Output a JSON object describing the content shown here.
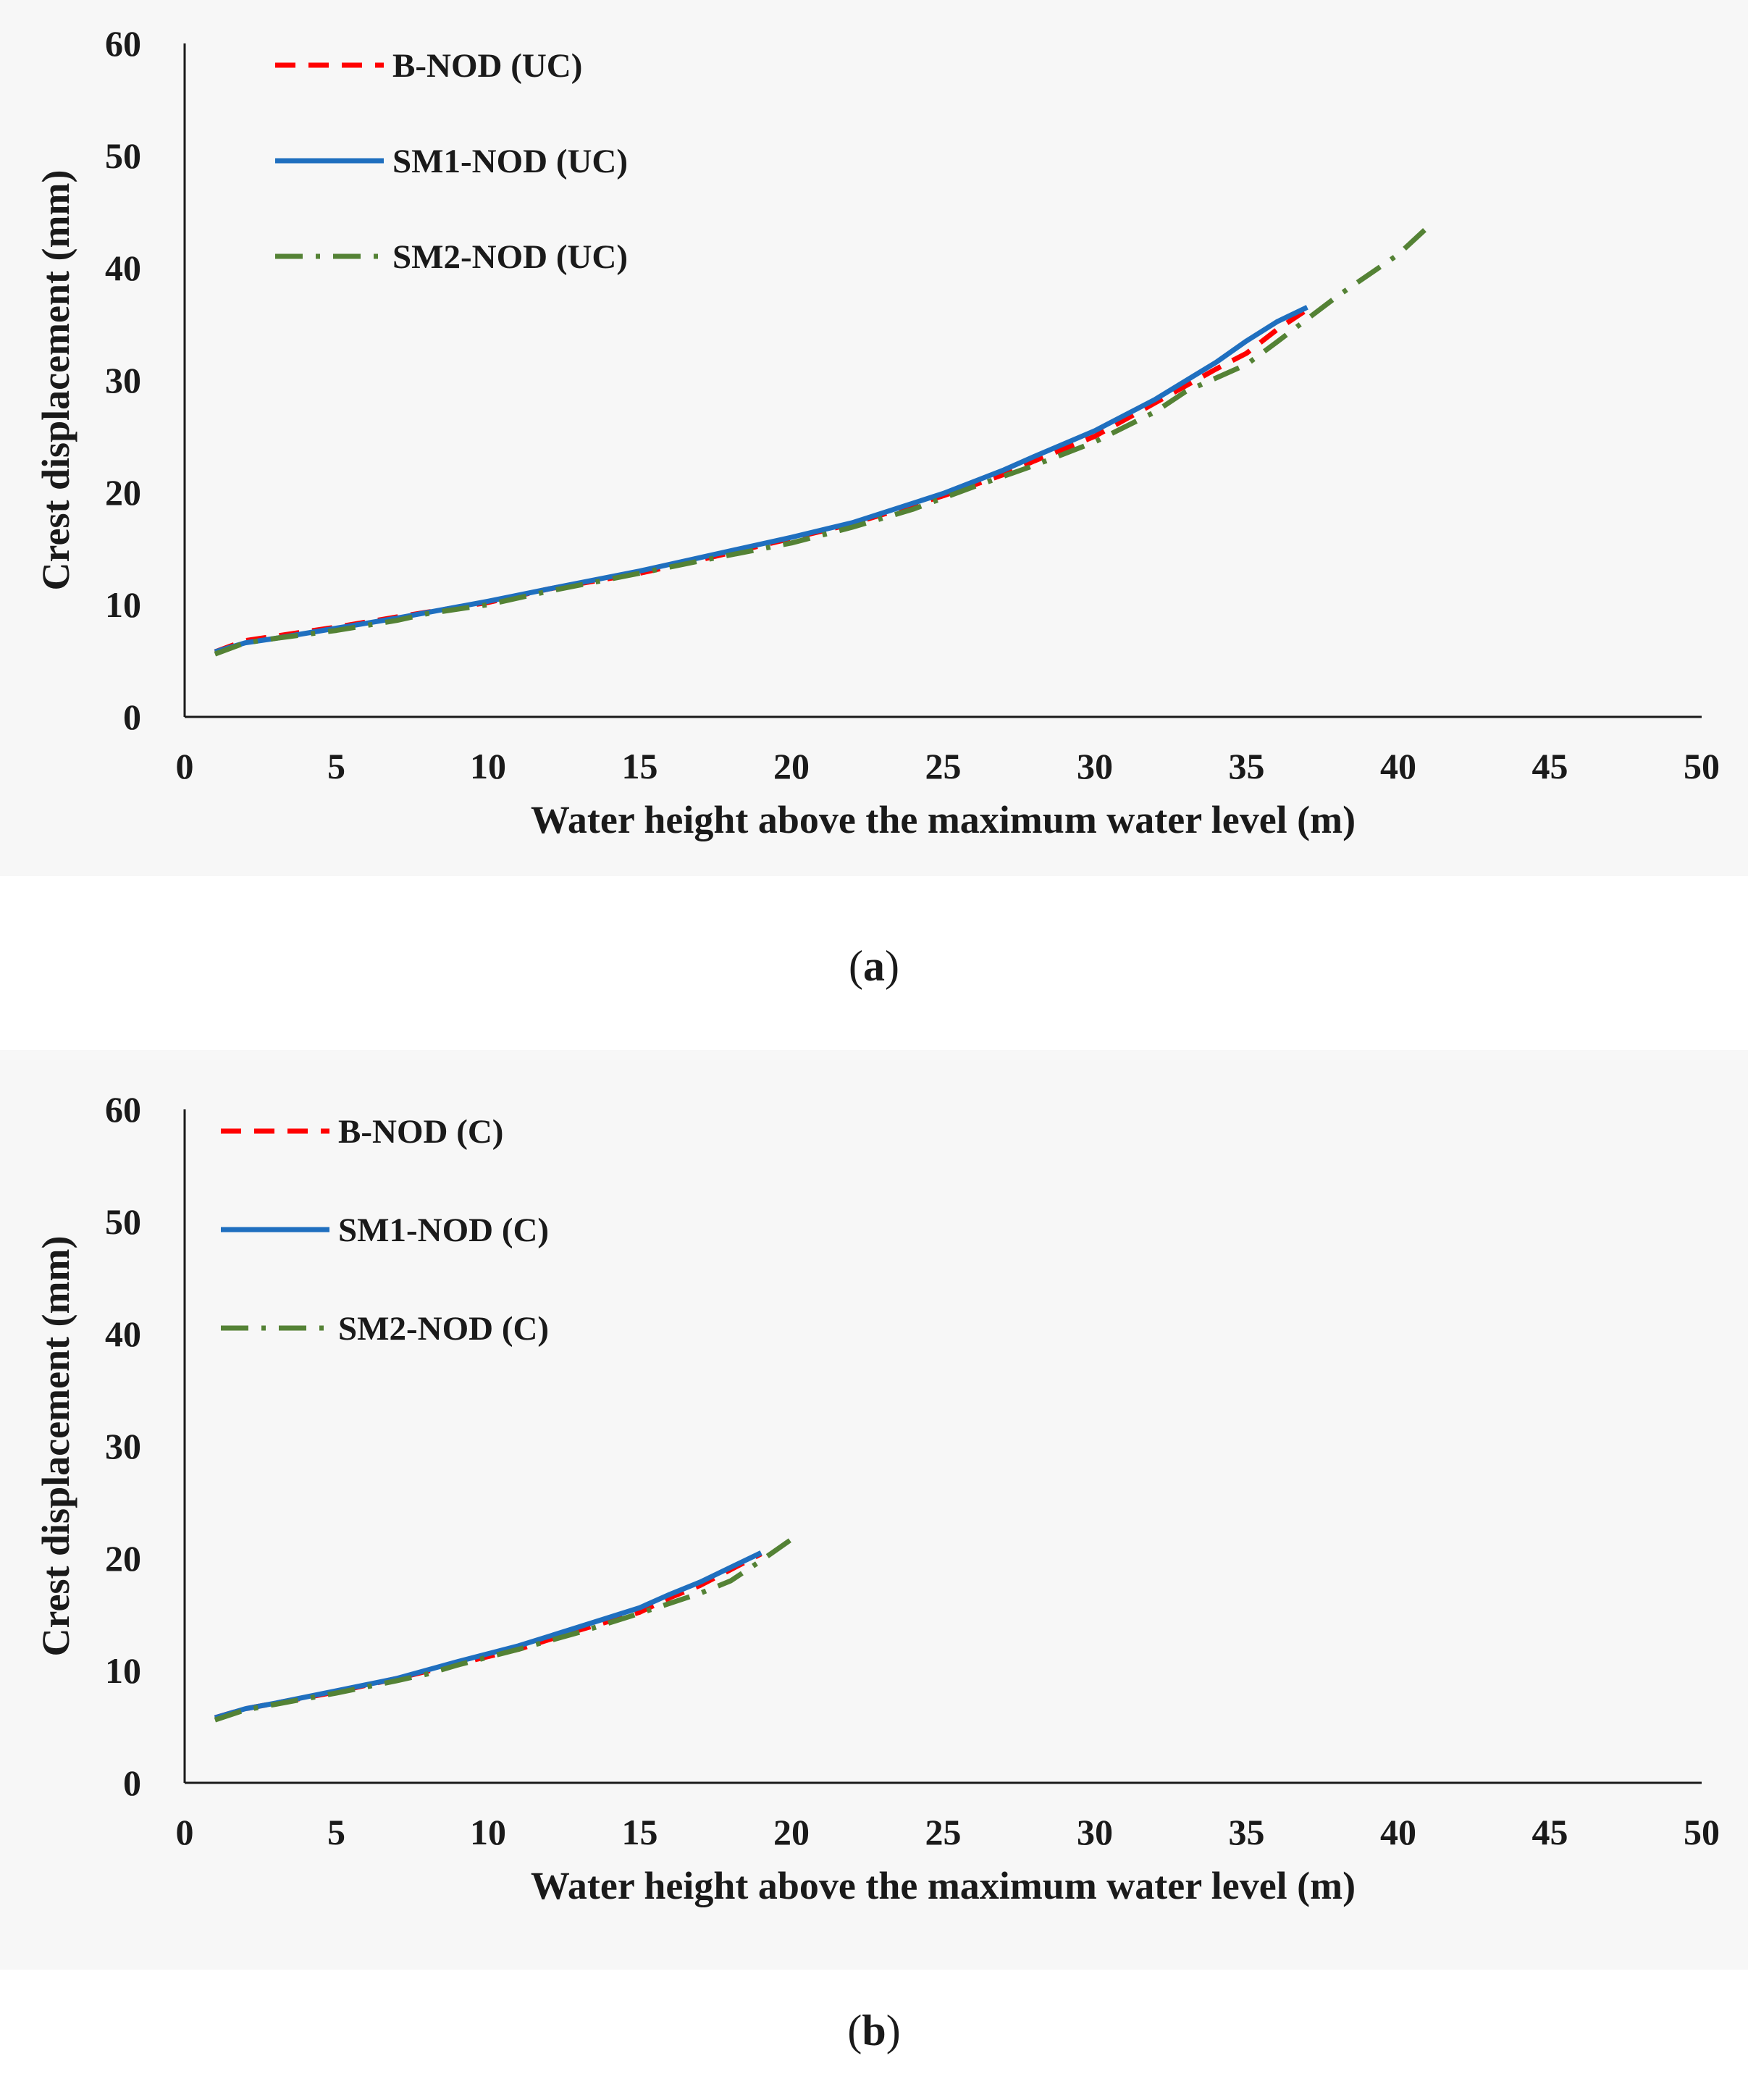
{
  "chart_data": [
    {
      "type": "line",
      "panel_label": "a",
      "title": "",
      "xlabel": "Water height above the maximum water level (m)",
      "ylabel": "Crest displacement (mm)",
      "xlim": [
        0,
        50
      ],
      "ylim": [
        0,
        60
      ],
      "xticks": [
        0,
        5,
        10,
        15,
        20,
        25,
        30,
        35,
        40,
        45,
        50
      ],
      "yticks": [
        0,
        10,
        20,
        30,
        40,
        50,
        60
      ],
      "grid": false,
      "legend_position": "top-left",
      "series": [
        {
          "name": "B-NOD (UC)",
          "color": "#ff0000",
          "style": "dashed",
          "x": [
            1,
            2,
            3,
            5,
            7,
            10,
            12,
            15,
            17,
            20,
            22,
            25,
            27,
            28,
            30,
            32,
            34,
            35,
            36,
            37
          ],
          "y": [
            5.8,
            6.8,
            7.2,
            8.0,
            8.9,
            10.2,
            11.4,
            12.8,
            14.0,
            15.9,
            17.2,
            19.7,
            21.6,
            22.8,
            25.0,
            28.0,
            31.0,
            32.4,
            34.5,
            36.3
          ]
        },
        {
          "name": "SM1-NOD (UC)",
          "color": "#1f6fbf",
          "style": "solid",
          "x": [
            1,
            2,
            3,
            5,
            7,
            10,
            12,
            15,
            17,
            20,
            22,
            25,
            27,
            28,
            30,
            32,
            34,
            35,
            36,
            37
          ],
          "y": [
            5.8,
            6.6,
            7.0,
            7.9,
            8.8,
            10.3,
            11.4,
            13.0,
            14.2,
            16.0,
            17.3,
            19.9,
            22.0,
            23.2,
            25.5,
            28.3,
            31.6,
            33.5,
            35.2,
            36.5
          ]
        },
        {
          "name": "SM2-NOD (UC)",
          "color": "#548235",
          "style": "dashdot",
          "x": [
            1,
            2,
            3,
            5,
            7,
            8,
            10,
            12,
            15,
            17,
            20,
            22,
            24,
            26,
            28,
            30,
            32,
            33,
            35,
            36,
            38,
            40,
            41
          ],
          "y": [
            5.6,
            6.6,
            7.0,
            7.7,
            8.6,
            9.2,
            10.0,
            11.2,
            12.8,
            13.9,
            15.5,
            16.9,
            18.5,
            20.5,
            22.4,
            24.5,
            27.2,
            29.0,
            31.4,
            33.4,
            37.5,
            41.2,
            43.7
          ]
        }
      ]
    },
    {
      "type": "line",
      "panel_label": "b",
      "title": "",
      "xlabel": "Water height above the maximum water level (m)",
      "ylabel": "Crest displacement (mm)",
      "xlim": [
        0,
        50
      ],
      "ylim": [
        0,
        60
      ],
      "xticks": [
        0,
        5,
        10,
        15,
        20,
        25,
        30,
        35,
        40,
        45,
        50
      ],
      "yticks": [
        0,
        10,
        20,
        30,
        40,
        50,
        60
      ],
      "grid": false,
      "legend_position": "top-left",
      "series": [
        {
          "name": "B-NOD (C)",
          "color": "#ff0000",
          "style": "dashed",
          "x": [
            1,
            2,
            3,
            5,
            7,
            9,
            11,
            13,
            15,
            16,
            17,
            18,
            19
          ],
          "y": [
            5.8,
            6.6,
            7.1,
            8.1,
            9.3,
            10.6,
            11.9,
            13.6,
            15.2,
            16.5,
            17.6,
            19.0,
            20.4
          ]
        },
        {
          "name": "SM1-NOD (C)",
          "color": "#1f6fbf",
          "style": "solid",
          "x": [
            1,
            2,
            3,
            5,
            7,
            9,
            11,
            13,
            15,
            16,
            17,
            18,
            19
          ],
          "y": [
            5.8,
            6.6,
            7.1,
            8.2,
            9.3,
            10.8,
            12.2,
            13.9,
            15.6,
            16.8,
            17.9,
            19.2,
            20.5
          ]
        },
        {
          "name": "SM2-NOD (C)",
          "color": "#548235",
          "style": "dashdot",
          "x": [
            1,
            2,
            3,
            5,
            7,
            8,
            9,
            11,
            13,
            15,
            17,
            18,
            19,
            20
          ],
          "y": [
            5.6,
            6.5,
            7.0,
            8.0,
            9.1,
            9.7,
            10.5,
            11.9,
            13.4,
            15.1,
            16.9,
            18.0,
            19.8,
            21.7
          ]
        }
      ]
    }
  ],
  "captions": [
    {
      "open": "(",
      "letter": "a",
      "close": ")"
    },
    {
      "open": "(",
      "letter": "b",
      "close": ")"
    }
  ]
}
